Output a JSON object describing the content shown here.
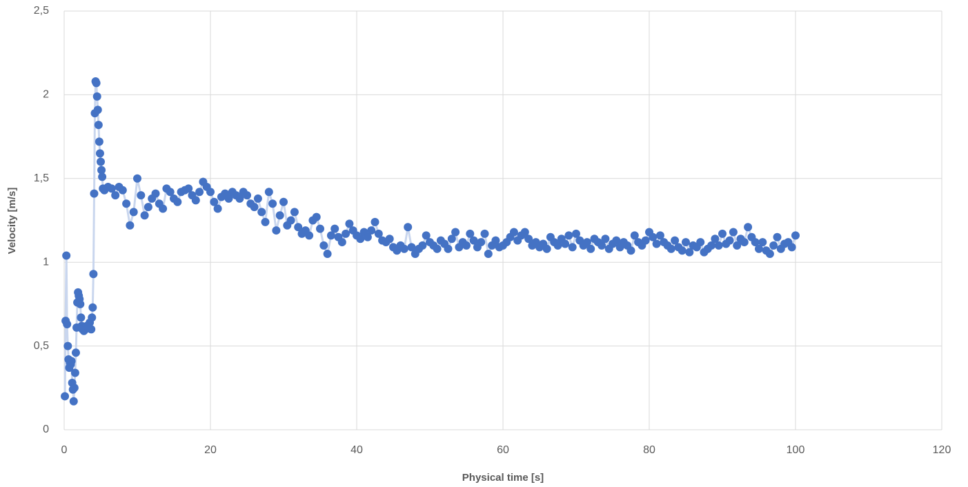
{
  "chart_data": {
    "type": "scatter",
    "x_label": "Physical time [s]",
    "y_label": "Velocity [m/s]",
    "xlim": [
      0,
      120
    ],
    "xticks": [
      0,
      20,
      40,
      60,
      80,
      100,
      120
    ],
    "ylim": [
      0,
      2.5
    ],
    "yticks": [
      0,
      {
        "value": 0.5,
        "label": "0,5"
      },
      1,
      {
        "value": 1.5,
        "label": "1,5"
      },
      2,
      {
        "value": 2.5,
        "label": "2,5"
      }
    ],
    "grid": true,
    "color": "#4472c4",
    "line_color": "#c9d6ee",
    "x": [
      0.1,
      0.2,
      0.3,
      0.4,
      0.5,
      0.6,
      0.7,
      0.8,
      0.9,
      1.0,
      1.1,
      1.2,
      1.3,
      1.4,
      1.5,
      1.6,
      1.7,
      1.8,
      1.9,
      2.0,
      2.1,
      2.2,
      2.3,
      2.4,
      2.5,
      2.7,
      2.9,
      3.1,
      3.3,
      3.5,
      3.7,
      3.8,
      3.9,
      4.0,
      4.1,
      4.2,
      4.3,
      4.4,
      4.5,
      4.6,
      4.7,
      4.8,
      4.9,
      5.0,
      5.1,
      5.2,
      5.3,
      5.5,
      6,
      6.5,
      7,
      7.5,
      8,
      8.5,
      9,
      9.5,
      10,
      10.5,
      11,
      11.5,
      12,
      12.5,
      13,
      13.5,
      14,
      14.5,
      15,
      15.5,
      16,
      16.5,
      17,
      17.5,
      18,
      18.5,
      19,
      19.5,
      20,
      20.5,
      21,
      21.5,
      22,
      22.5,
      23,
      23.5,
      24,
      24.5,
      25,
      25.5,
      26,
      26.5,
      27,
      27.5,
      28,
      28.5,
      29,
      29.5,
      30,
      30.5,
      31,
      31.5,
      32,
      32.5,
      33,
      33.5,
      34,
      34.5,
      35,
      35.5,
      36,
      36.5,
      37,
      37.5,
      38,
      38.5,
      39,
      39.5,
      40,
      40.5,
      41,
      41.5,
      42,
      42.5,
      43,
      43.5,
      44,
      44.5,
      45,
      45.5,
      46,
      46.5,
      47,
      47.5,
      48,
      48.5,
      49,
      49.5,
      50,
      50.5,
      51,
      51.5,
      52,
      52.5,
      53,
      53.5,
      54,
      54.5,
      55,
      55.5,
      56,
      56.5,
      57,
      57.5,
      58,
      58.5,
      59,
      59.5,
      60,
      60.5,
      61,
      61.5,
      62,
      62.5,
      63,
      63.5,
      64,
      64.5,
      65,
      65.5,
      66,
      66.5,
      67,
      67.5,
      68,
      68.5,
      69,
      69.5,
      70,
      70.5,
      71,
      71.5,
      72,
      72.5,
      73,
      73.5,
      74,
      74.5,
      75,
      75.5,
      76,
      76.5,
      77,
      77.5,
      78,
      78.5,
      79,
      79.5,
      80,
      80.5,
      81,
      81.5,
      82,
      82.5,
      83,
      83.5,
      84,
      84.5,
      85,
      85.5,
      86,
      86.5,
      87,
      87.5,
      88,
      88.5,
      89,
      89.5,
      90,
      90.5,
      91,
      91.5,
      92,
      92.5,
      93,
      93.5,
      94,
      94.5,
      95,
      95.5,
      96,
      96.5,
      97,
      97.5,
      98,
      98.5,
      99,
      99.5,
      100
    ],
    "values": [
      0.2,
      0.65,
      1.04,
      0.63,
      0.5,
      0.42,
      0.37,
      0.4,
      0.39,
      0.41,
      0.28,
      0.24,
      0.17,
      0.25,
      0.34,
      0.46,
      0.61,
      0.76,
      0.82,
      0.8,
      0.78,
      0.75,
      0.67,
      0.62,
      0.6,
      0.59,
      0.6,
      0.62,
      0.61,
      0.64,
      0.6,
      0.67,
      0.73,
      0.93,
      1.41,
      1.89,
      2.08,
      2.07,
      1.99,
      1.91,
      1.82,
      1.72,
      1.65,
      1.6,
      1.55,
      1.51,
      1.44,
      1.43,
      1.45,
      1.44,
      1.4,
      1.45,
      1.43,
      1.35,
      1.22,
      1.3,
      1.5,
      1.4,
      1.28,
      1.33,
      1.38,
      1.41,
      1.35,
      1.32,
      1.44,
      1.42,
      1.38,
      1.36,
      1.42,
      1.43,
      1.44,
      1.4,
      1.37,
      1.42,
      1.48,
      1.45,
      1.42,
      1.36,
      1.32,
      1.39,
      1.41,
      1.38,
      1.42,
      1.4,
      1.38,
      1.42,
      1.4,
      1.35,
      1.33,
      1.38,
      1.3,
      1.24,
      1.42,
      1.35,
      1.19,
      1.28,
      1.36,
      1.22,
      1.25,
      1.3,
      1.21,
      1.17,
      1.19,
      1.16,
      1.25,
      1.27,
      1.2,
      1.1,
      1.05,
      1.16,
      1.2,
      1.15,
      1.12,
      1.17,
      1.23,
      1.19,
      1.16,
      1.14,
      1.18,
      1.15,
      1.19,
      1.24,
      1.17,
      1.13,
      1.12,
      1.14,
      1.09,
      1.07,
      1.1,
      1.08,
      1.21,
      1.09,
      1.05,
      1.08,
      1.1,
      1.16,
      1.12,
      1.1,
      1.08,
      1.13,
      1.11,
      1.08,
      1.14,
      1.18,
      1.09,
      1.12,
      1.1,
      1.17,
      1.13,
      1.09,
      1.12,
      1.17,
      1.05,
      1.1,
      1.13,
      1.09,
      1.1,
      1.12,
      1.15,
      1.18,
      1.13,
      1.16,
      1.18,
      1.14,
      1.1,
      1.12,
      1.09,
      1.11,
      1.08,
      1.15,
      1.12,
      1.1,
      1.14,
      1.11,
      1.16,
      1.09,
      1.17,
      1.13,
      1.1,
      1.12,
      1.08,
      1.14,
      1.12,
      1.1,
      1.14,
      1.08,
      1.11,
      1.13,
      1.09,
      1.12,
      1.1,
      1.07,
      1.16,
      1.12,
      1.1,
      1.13,
      1.18,
      1.15,
      1.11,
      1.16,
      1.12,
      1.1,
      1.08,
      1.13,
      1.09,
      1.07,
      1.12,
      1.06,
      1.1,
      1.09,
      1.12,
      1.06,
      1.08,
      1.1,
      1.14,
      1.1,
      1.17,
      1.11,
      1.13,
      1.18,
      1.1,
      1.14,
      1.12,
      1.21,
      1.15,
      1.12,
      1.08,
      1.12,
      1.07,
      1.05,
      1.1,
      1.15,
      1.08,
      1.11,
      1.12,
      1.09,
      1.16
    ]
  }
}
